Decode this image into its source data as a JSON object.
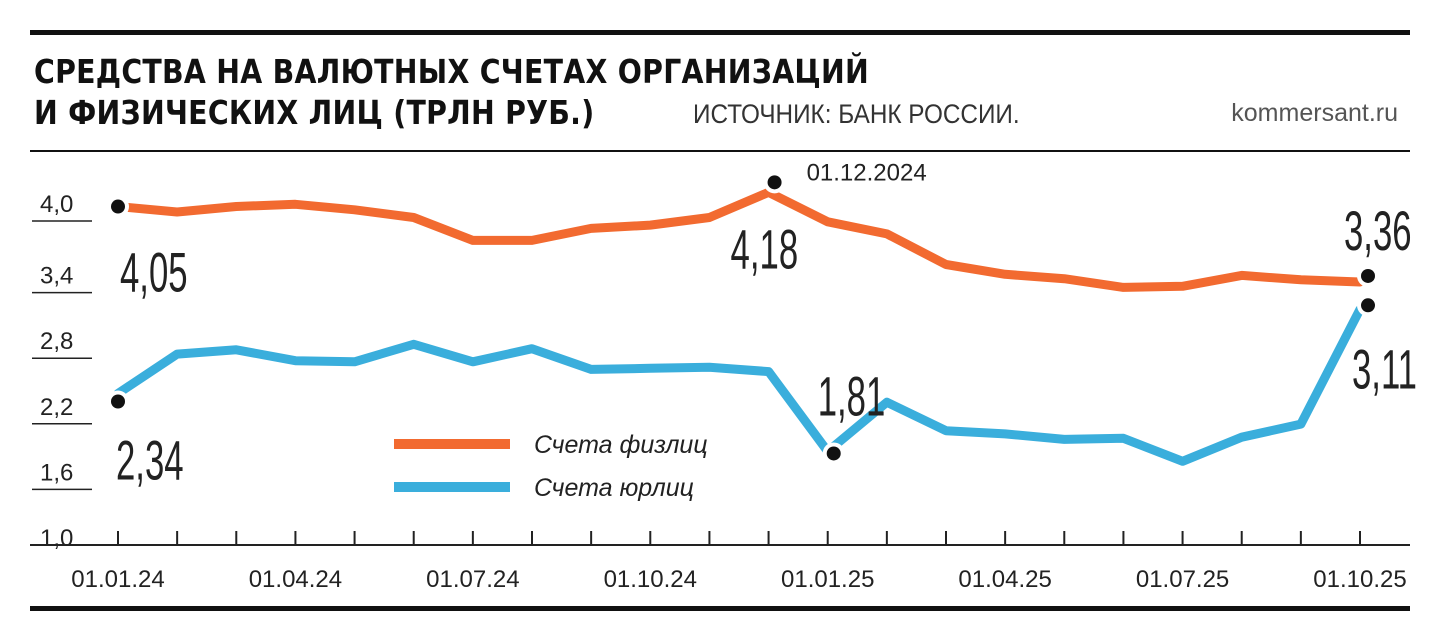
{
  "header": {
    "title_line1": "СРЕДСТВА НА ВАЛЮТНЫХ СЧЕТАХ ОРГАНИЗАЦИЙ",
    "title_line2": "И ФИЗИЧЕСКИХ ЛИЦ (ТРЛН РУБ.)",
    "source": "ИСТОЧНИК: БАНК РОССИИ.",
    "site": "kommersant.ru"
  },
  "colors": {
    "individuals": "#f26a30",
    "companies": "#3aaedc",
    "ink": "#111111"
  },
  "chart_data": {
    "type": "line",
    "title": "СРЕДСТВА НА ВАЛЮТНЫХ СЧЕТАХ ОРГАНИЗАЦИЙ И ФИЗИЧЕСКИХ ЛИЦ (ТРЛН РУБ.)",
    "xlabel": "",
    "ylabel": "трлн руб.",
    "ylim": [
      1.0,
      4.0
    ],
    "yticks": [
      "4,0",
      "3,4",
      "2,8",
      "2,2",
      "1,6",
      "1,0"
    ],
    "ytick_values": [
      4.0,
      3.4,
      2.8,
      2.2,
      1.6,
      1.0
    ],
    "xtick_labels": [
      "01.01.24",
      "01.04.24",
      "01.07.24",
      "01.10.24",
      "01.01.25",
      "01.04.25",
      "01.07.25",
      "01.10.25"
    ],
    "series": [
      {
        "name": "Счета физлиц",
        "values": [
          4.05,
          4.0,
          4.05,
          4.07,
          4.02,
          3.95,
          3.74,
          3.74,
          3.85,
          3.88,
          3.95,
          4.18,
          3.91,
          3.8,
          3.52,
          3.43,
          3.39,
          3.31,
          3.32,
          3.42,
          3.38,
          3.36
        ]
      },
      {
        "name": "Счета юрлиц",
        "values": [
          2.34,
          2.7,
          2.74,
          2.64,
          2.63,
          2.79,
          2.63,
          2.75,
          2.56,
          2.57,
          2.58,
          2.54,
          1.81,
          2.26,
          2.0,
          1.97,
          1.92,
          1.93,
          1.72,
          1.94,
          2.06,
          3.11
        ]
      }
    ],
    "annotations": [
      {
        "series": 0,
        "index": 0,
        "text": "4,05"
      },
      {
        "series": 0,
        "index": 11,
        "text": "4,18",
        "date": "01.12.2024"
      },
      {
        "series": 0,
        "index": 21,
        "text": "3,36"
      },
      {
        "series": 1,
        "index": 0,
        "text": "2,34"
      },
      {
        "series": 1,
        "index": 12,
        "text": "1,81"
      },
      {
        "series": 1,
        "index": 21,
        "text": "3,11"
      }
    ],
    "legend": {
      "position": "center",
      "items": [
        "Счета физлиц",
        "Счета юрлиц"
      ]
    }
  }
}
